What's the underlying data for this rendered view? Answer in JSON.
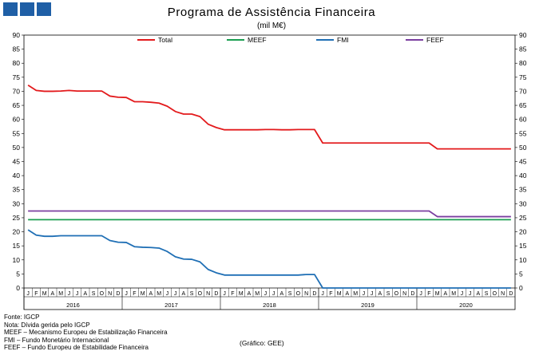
{
  "header": {
    "logo": "gee-logo",
    "title": "Programa  de Assistência Financeira",
    "subtitle": "(mil M€)"
  },
  "footer": {
    "notes": [
      "Fonte: IGCP",
      "Nota: Dívida gerida pelo IGCP",
      "MEEF – Mecanismo Europeu de Estabilização Financeira",
      "FMI – Fundo Monetário Internacional",
      "FEEF – Fundo Europeu de Estabilidade Financeira"
    ],
    "credit": "(Gráfico: GEE)"
  },
  "chart_data": {
    "type": "line",
    "title": "Programa  de Assistência Financeira",
    "subtitle": "(mil M€)",
    "ylim": [
      0,
      90
    ],
    "yticks": [
      0,
      5,
      10,
      15,
      20,
      25,
      30,
      35,
      40,
      45,
      50,
      55,
      60,
      65,
      70,
      75,
      80,
      85,
      90
    ],
    "grid": false,
    "legend_position": "top",
    "month_labels": [
      "J",
      "F",
      "M",
      "A",
      "M",
      "J",
      "J",
      "A",
      "S",
      "O",
      "N",
      "D"
    ],
    "years": [
      "2016",
      "2017",
      "2018",
      "2019",
      "2020"
    ],
    "x": [
      "2016-01",
      "2016-02",
      "2016-03",
      "2016-04",
      "2016-05",
      "2016-06",
      "2016-07",
      "2016-08",
      "2016-09",
      "2016-10",
      "2016-11",
      "2016-12",
      "2017-01",
      "2017-02",
      "2017-03",
      "2017-04",
      "2017-05",
      "2017-06",
      "2017-07",
      "2017-08",
      "2017-09",
      "2017-10",
      "2017-11",
      "2017-12",
      "2018-01",
      "2018-02",
      "2018-03",
      "2018-04",
      "2018-05",
      "2018-06",
      "2018-07",
      "2018-08",
      "2018-09",
      "2018-10",
      "2018-11",
      "2018-12",
      "2019-01",
      "2019-02",
      "2019-03",
      "2019-04",
      "2019-05",
      "2019-06",
      "2019-07",
      "2019-08",
      "2019-09",
      "2019-10",
      "2019-11",
      "2019-12",
      "2020-01",
      "2020-02",
      "2020-03",
      "2020-04",
      "2020-05",
      "2020-06",
      "2020-07",
      "2020-08",
      "2020-09",
      "2020-10",
      "2020-11",
      "2020-12"
    ],
    "series": [
      {
        "name": "Total",
        "color": "#e31a1c",
        "values": [
          72.2,
          70.3,
          70.0,
          70.0,
          70.1,
          70.3,
          70.1,
          70.1,
          70.1,
          70.1,
          68.3,
          67.9,
          67.8,
          66.3,
          66.3,
          66.1,
          65.8,
          64.7,
          62.8,
          61.9,
          61.9,
          61.0,
          58.3,
          57.1,
          56.3,
          56.3,
          56.3,
          56.3,
          56.3,
          56.4,
          56.4,
          56.3,
          56.3,
          56.4,
          56.4,
          56.4,
          51.6,
          51.6,
          51.6,
          51.6,
          51.6,
          51.6,
          51.6,
          51.6,
          51.6,
          51.6,
          51.6,
          51.6,
          51.6,
          51.6,
          49.5,
          49.5,
          49.5,
          49.5,
          49.5,
          49.5,
          49.5,
          49.5,
          49.5,
          49.5
        ]
      },
      {
        "name": "MEEF",
        "color": "#1a9e50",
        "values": [
          24.3,
          24.3,
          24.3,
          24.3,
          24.3,
          24.3,
          24.3,
          24.3,
          24.3,
          24.3,
          24.3,
          24.3,
          24.3,
          24.3,
          24.3,
          24.3,
          24.3,
          24.3,
          24.3,
          24.3,
          24.3,
          24.3,
          24.3,
          24.3,
          24.3,
          24.3,
          24.3,
          24.3,
          24.3,
          24.3,
          24.3,
          24.3,
          24.3,
          24.3,
          24.3,
          24.3,
          24.3,
          24.3,
          24.3,
          24.3,
          24.3,
          24.3,
          24.3,
          24.3,
          24.3,
          24.3,
          24.3,
          24.3,
          24.3,
          24.3,
          24.3,
          24.3,
          24.3,
          24.3,
          24.3,
          24.3,
          24.3,
          24.3,
          24.3,
          24.3
        ]
      },
      {
        "name": "FMI",
        "color": "#1f6fb5",
        "values": [
          20.7,
          18.8,
          18.4,
          18.4,
          18.6,
          18.6,
          18.6,
          18.6,
          18.6,
          18.6,
          16.9,
          16.3,
          16.2,
          14.7,
          14.5,
          14.4,
          14.2,
          13.0,
          11.1,
          10.3,
          10.2,
          9.3,
          6.6,
          5.4,
          4.6,
          4.6,
          4.6,
          4.6,
          4.6,
          4.6,
          4.6,
          4.6,
          4.6,
          4.6,
          4.8,
          4.8,
          0,
          0,
          0,
          0,
          0,
          0,
          0,
          0,
          0,
          0,
          0,
          0,
          0,
          0,
          0,
          0,
          0,
          0,
          0,
          0,
          0,
          0,
          0,
          0
        ]
      },
      {
        "name": "FEEF",
        "color": "#7b3fa0",
        "values": [
          27.4,
          27.4,
          27.4,
          27.4,
          27.4,
          27.4,
          27.4,
          27.4,
          27.4,
          27.4,
          27.4,
          27.4,
          27.4,
          27.4,
          27.4,
          27.4,
          27.4,
          27.4,
          27.4,
          27.4,
          27.4,
          27.4,
          27.4,
          27.4,
          27.4,
          27.4,
          27.4,
          27.4,
          27.4,
          27.4,
          27.4,
          27.4,
          27.4,
          27.4,
          27.4,
          27.4,
          27.4,
          27.4,
          27.4,
          27.4,
          27.4,
          27.4,
          27.4,
          27.4,
          27.4,
          27.4,
          27.4,
          27.4,
          27.4,
          27.4,
          25.4,
          25.4,
          25.4,
          25.4,
          25.4,
          25.4,
          25.4,
          25.4,
          25.4,
          25.4
        ]
      }
    ]
  }
}
